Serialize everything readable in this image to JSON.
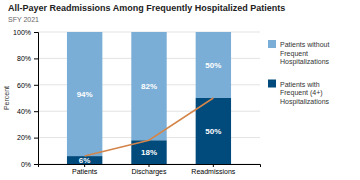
{
  "chart_data": {
    "type": "bar",
    "title": "All-Payer Readmissions Among Frequently Hospitalized Patients",
    "subtitle": "SFY 2021",
    "categories": [
      "Patients",
      "Discharges",
      "Readmissions"
    ],
    "series": [
      {
        "name": "Patients with\nFrequent (4+)\nHospitalizations",
        "color": "#004a7c",
        "values": [
          6,
          18,
          50
        ],
        "value_labels": [
          "6%",
          "18%",
          "50%"
        ]
      },
      {
        "name": "Patients without\nFrequent\nHospitalizations",
        "color": "#7aaed6",
        "values": [
          94,
          82,
          50
        ],
        "value_labels": [
          "94%",
          "82%",
          "50%"
        ]
      },
      {
        "type": "line",
        "color": "#d4854a",
        "values": [
          6,
          18,
          50
        ]
      }
    ],
    "stacked": true,
    "data_labels": true,
    "ylabel": "Percent",
    "ylim": [
      0,
      100
    ],
    "yticks": [
      {
        "value": 0,
        "label": "0%"
      },
      {
        "value": 20,
        "label": "20%"
      },
      {
        "value": 40,
        "label": "40%"
      },
      {
        "value": 60,
        "label": "60%"
      },
      {
        "value": 80,
        "label": "80%"
      },
      {
        "value": 100,
        "label": "100%"
      }
    ],
    "grid": true,
    "legend": "right"
  }
}
